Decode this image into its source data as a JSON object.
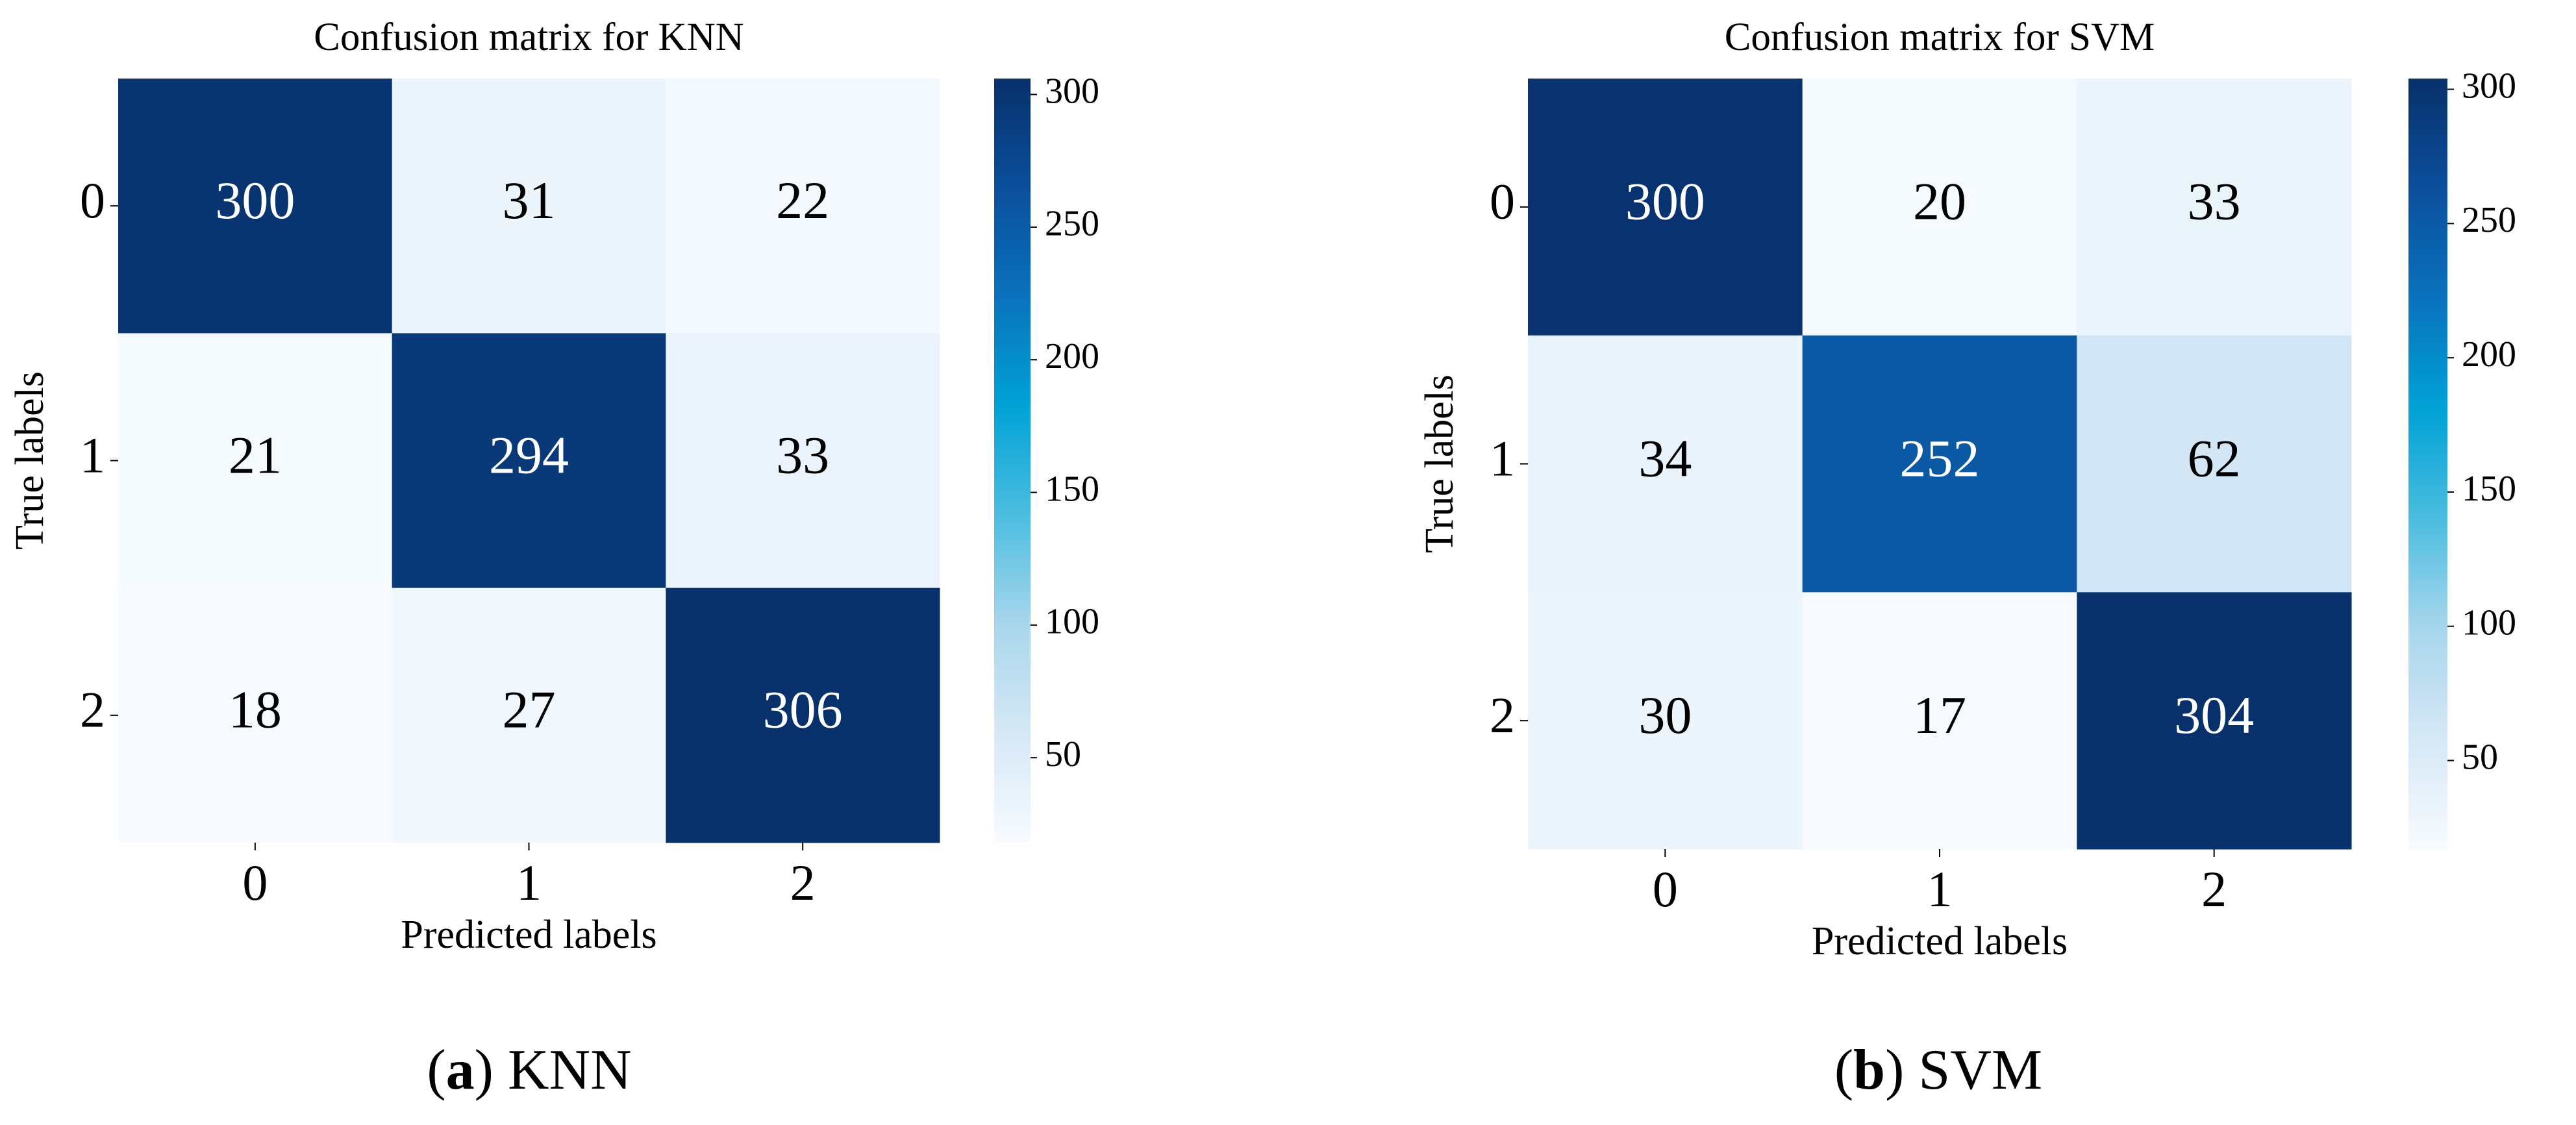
{
  "chart_data": [
    {
      "type": "heatmap",
      "title": "Confusion matrix for KNN",
      "xlabel": "Predicted labels",
      "ylabel": "True labels",
      "x_categories": [
        "0",
        "1",
        "2"
      ],
      "y_categories": [
        "0",
        "1",
        "2"
      ],
      "values": [
        [
          300,
          31,
          22
        ],
        [
          21,
          294,
          33
        ],
        [
          18,
          27,
          306
        ]
      ],
      "clim": [
        18,
        306
      ],
      "cticks": [
        50,
        100,
        150,
        200,
        250,
        300
      ],
      "colormap": [
        "#f7fbff",
        "#d6e8f6",
        "#a8d6ec",
        "#4cbde0",
        "#00a2d6",
        "#0a72bd",
        "#0b4f9c",
        "#08306b"
      ],
      "caption_parts": [
        "(",
        "a",
        ") KNN"
      ]
    },
    {
      "type": "heatmap",
      "title": "Confusion matrix for SVM",
      "xlabel": "Predicted labels",
      "ylabel": "True labels",
      "x_categories": [
        "0",
        "1",
        "2"
      ],
      "y_categories": [
        "0",
        "1",
        "2"
      ],
      "values": [
        [
          300,
          20,
          33
        ],
        [
          34,
          252,
          62
        ],
        [
          30,
          17,
          304
        ]
      ],
      "clim": [
        17,
        304
      ],
      "cticks": [
        50,
        100,
        150,
        200,
        250,
        300
      ],
      "colormap": [
        "#f7fbff",
        "#d6e8f6",
        "#a8d6ec",
        "#4cbde0",
        "#00a2d6",
        "#0a72bd",
        "#0b4f9c",
        "#08306b"
      ],
      "caption_parts": [
        "(",
        "b",
        ") SVM"
      ]
    }
  ]
}
